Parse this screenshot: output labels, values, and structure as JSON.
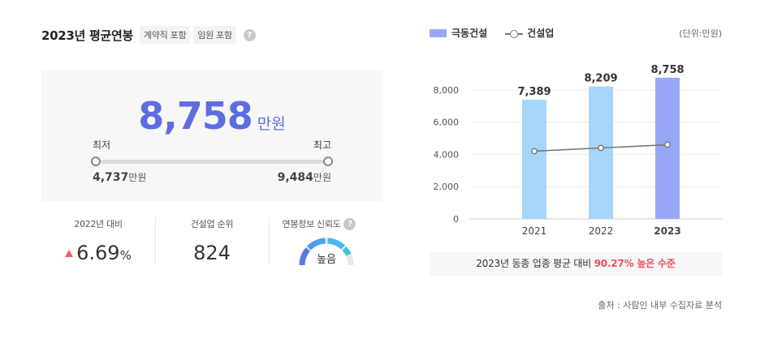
{
  "header": {
    "title": "2023년 평균연봉",
    "tags": [
      "계약직 포함",
      "임원 포함"
    ],
    "help_icon": "question-icon"
  },
  "salary": {
    "value": "8,758",
    "unit": "만원",
    "min_label": "최저",
    "max_label": "최고",
    "min_value": "4,737",
    "max_value": "9,484",
    "value_unit": "만원"
  },
  "stats": {
    "yoy_label": "2022년 대비",
    "yoy_value": "6.69",
    "yoy_unit": "%",
    "yoy_direction": "up",
    "rank_label": "건설업 순위",
    "rank_value": "824",
    "reliability_label": "연봉정보 신뢰도",
    "reliability_value": "높음",
    "reliability_level": 0.85
  },
  "colors": {
    "accent": "#5c6ee0",
    "bar_past": "#a7d5fb",
    "bar_current": "#97a7f5",
    "line": "#777777",
    "up": "#f05c5c",
    "highlight": "#f04e5e"
  },
  "chart_data": {
    "type": "bar",
    "categories": [
      "2021",
      "2022",
      "2023"
    ],
    "series": [
      {
        "name": "극동건설",
        "values": [
          7389,
          8209,
          8758
        ],
        "value_labels": [
          "7,389",
          "8,209",
          "8,758"
        ]
      },
      {
        "name": "건설업",
        "type": "line",
        "values": [
          4200,
          4400,
          4600
        ]
      }
    ],
    "ylim": [
      0,
      8900
    ],
    "yticks": [
      0,
      2000,
      4000,
      6000,
      8000
    ],
    "ytick_labels": [
      "0",
      "2,000",
      "4,000",
      "6,000",
      "8,000"
    ],
    "legend": "top-left",
    "unit_note": "(단위:만원)",
    "grid": true
  },
  "compare": {
    "text": "2023년 동종 업종 평균 대비",
    "highlight": "90.27% 높은 수준"
  },
  "source": "출처 : 사람인 내부 수집자료 분석"
}
